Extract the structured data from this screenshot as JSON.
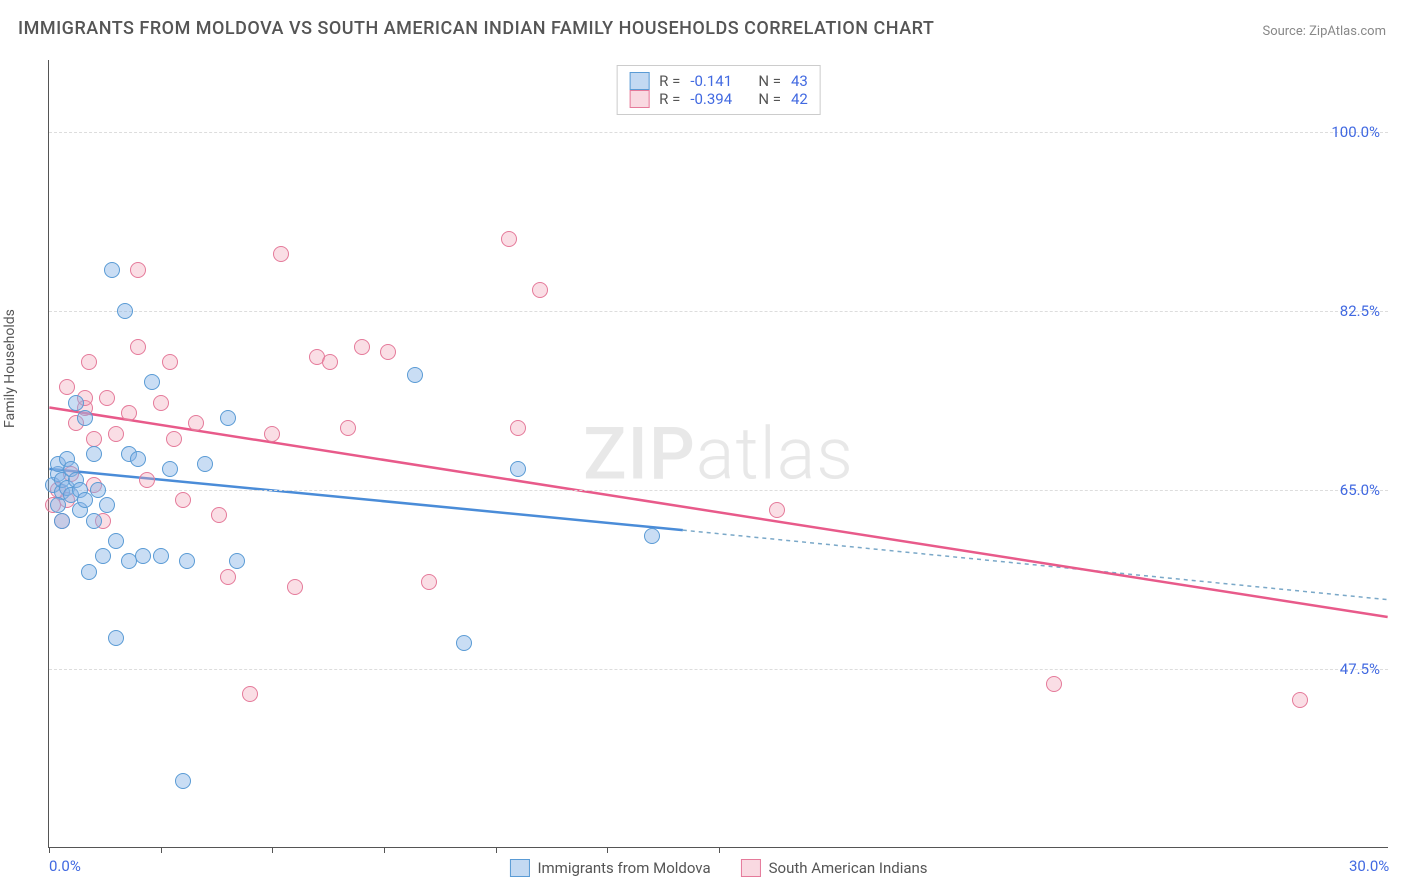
{
  "title": "IMMIGRANTS FROM MOLDOVA VS SOUTH AMERICAN INDIAN FAMILY HOUSEHOLDS CORRELATION CHART",
  "source": "Source: ZipAtlas.com",
  "watermark_bold": "ZIP",
  "watermark_light": "atlas",
  "ylabel": "Family Households",
  "chart": {
    "type": "scatter",
    "xlim": [
      0,
      30
    ],
    "ylim": [
      30,
      107
    ],
    "x_ticks": [
      0,
      2.5,
      5,
      7.5,
      10,
      12.5,
      15
    ],
    "x_tick_labels": {
      "0": "0.0%",
      "30": "30.0%"
    },
    "y_ticks": [
      47.5,
      65.0,
      82.5,
      100.0
    ],
    "y_tick_labels": [
      "47.5%",
      "65.0%",
      "82.5%",
      "100.0%"
    ],
    "grid_color": "#dddddd",
    "axis_color": "#555555",
    "label_color": "#4169e1",
    "marker_radius": 8,
    "series": [
      {
        "name": "Immigrants from Moldova",
        "key": "blue",
        "fill": "rgba(135,180,230,0.45)",
        "stroke": "#5a9bd5",
        "R": "-0.141",
        "N": "43",
        "trend": {
          "x1": 0,
          "y1": 67.0,
          "x2": 14.2,
          "y2": 61.0,
          "x2_dash": 30,
          "y2_dash": 54.2,
          "color": "#4a8cd8",
          "dash_color": "#7aa8c8"
        },
        "data": [
          [
            0.1,
            65.5
          ],
          [
            0.2,
            66.5
          ],
          [
            0.2,
            67.5
          ],
          [
            0.3,
            64.8
          ],
          [
            0.3,
            66.0
          ],
          [
            0.4,
            65.2
          ],
          [
            0.4,
            68.0
          ],
          [
            0.5,
            64.5
          ],
          [
            0.5,
            67.0
          ],
          [
            0.6,
            73.5
          ],
          [
            0.6,
            66.0
          ],
          [
            0.7,
            63.0
          ],
          [
            0.7,
            65.0
          ],
          [
            0.8,
            72.0
          ],
          [
            0.8,
            64.0
          ],
          [
            0.9,
            57.0
          ],
          [
            1.0,
            68.5
          ],
          [
            1.0,
            62.0
          ],
          [
            1.1,
            65.0
          ],
          [
            1.2,
            58.5
          ],
          [
            1.3,
            63.5
          ],
          [
            1.4,
            86.5
          ],
          [
            1.5,
            60.0
          ],
          [
            1.5,
            50.5
          ],
          [
            1.7,
            82.5
          ],
          [
            1.8,
            58.0
          ],
          [
            1.8,
            68.5
          ],
          [
            2.0,
            68.0
          ],
          [
            2.1,
            58.5
          ],
          [
            2.3,
            75.5
          ],
          [
            2.5,
            58.5
          ],
          [
            2.7,
            67.0
          ],
          [
            3.0,
            36.5
          ],
          [
            3.1,
            58.0
          ],
          [
            3.5,
            67.5
          ],
          [
            4.0,
            72.0
          ],
          [
            4.2,
            58.0
          ],
          [
            8.2,
            76.2
          ],
          [
            9.3,
            50.0
          ],
          [
            10.5,
            67.0
          ],
          [
            13.5,
            60.5
          ],
          [
            0.3,
            62.0
          ],
          [
            0.2,
            63.5
          ]
        ]
      },
      {
        "name": "South American Indians",
        "key": "pink",
        "fill": "rgba(240,160,180,0.35)",
        "stroke": "#e57a9a",
        "R": "-0.394",
        "N": "42",
        "trend": {
          "x1": 0,
          "y1": 73.0,
          "x2": 30,
          "y2": 52.5,
          "color": "#e85a8a"
        },
        "data": [
          [
            0.1,
            63.5
          ],
          [
            0.2,
            65.0
          ],
          [
            0.3,
            62.0
          ],
          [
            0.4,
            75.0
          ],
          [
            0.5,
            66.5
          ],
          [
            0.6,
            71.5
          ],
          [
            0.8,
            73.0
          ],
          [
            0.8,
            74.0
          ],
          [
            0.9,
            77.5
          ],
          [
            1.0,
            70.0
          ],
          [
            1.0,
            65.5
          ],
          [
            1.2,
            62.0
          ],
          [
            1.3,
            74.0
          ],
          [
            1.5,
            70.5
          ],
          [
            1.8,
            72.5
          ],
          [
            2.0,
            86.5
          ],
          [
            2.0,
            79.0
          ],
          [
            2.2,
            66.0
          ],
          [
            2.5,
            73.5
          ],
          [
            2.7,
            77.5
          ],
          [
            2.8,
            70.0
          ],
          [
            3.0,
            64.0
          ],
          [
            3.3,
            71.5
          ],
          [
            3.8,
            62.5
          ],
          [
            4.0,
            56.5
          ],
          [
            4.5,
            45.0
          ],
          [
            5.0,
            70.5
          ],
          [
            5.2,
            88.0
          ],
          [
            5.5,
            55.5
          ],
          [
            6.0,
            78.0
          ],
          [
            6.3,
            77.5
          ],
          [
            6.7,
            71.0
          ],
          [
            7.0,
            79.0
          ],
          [
            7.6,
            78.5
          ],
          [
            8.5,
            56.0
          ],
          [
            10.3,
            89.5
          ],
          [
            10.5,
            71.0
          ],
          [
            11.0,
            84.5
          ],
          [
            16.3,
            63.0
          ],
          [
            22.5,
            46.0
          ],
          [
            28.0,
            44.5
          ],
          [
            0.4,
            64.0
          ]
        ]
      }
    ]
  },
  "legend_bottom": [
    {
      "key": "blue",
      "label": "Immigrants from Moldova"
    },
    {
      "key": "pink",
      "label": "South American Indians"
    }
  ]
}
